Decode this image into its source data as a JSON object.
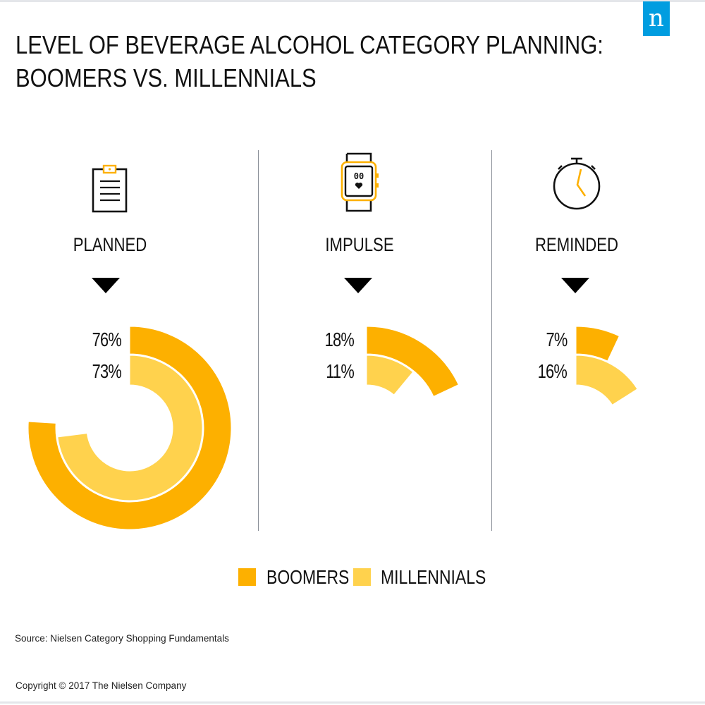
{
  "brand": {
    "logo_letter": "n",
    "color": "#009de0"
  },
  "title_lines": [
    "LEVEL OF BEVERAGE ALCOHOL CATEGORY PLANNING:",
    "BOOMERS VS. MILLENNIALS"
  ],
  "colors": {
    "boomers": "#fdb000",
    "millennials": "#ffd24d",
    "text": "#111111"
  },
  "icons": {
    "planned": "clipboard-icon",
    "impulse": "smartwatch-icon",
    "reminded": "stopwatch-icon"
  },
  "chart_data": {
    "type": "radial-bar",
    "title": "LEVEL OF BEVERAGE ALCOHOL CATEGORY PLANNING: BOOMERS VS. MILLENNIALS",
    "unit": "%",
    "categories": [
      "PLANNED",
      "IMPULSE",
      "REMINDED"
    ],
    "series": [
      {
        "name": "BOOMERS",
        "color": "#fdb000",
        "values": [
          76,
          18,
          7
        ],
        "labels": [
          "76%",
          "18%",
          "7%"
        ]
      },
      {
        "name": "MILLENNIALS",
        "color": "#ffd24d",
        "values": [
          73,
          11,
          16
        ],
        "labels": [
          "73%",
          "11%",
          "16%"
        ]
      }
    ],
    "legend": {
      "placement": "bottom-center",
      "entries": [
        "BOOMERS",
        "MILLENNIALS"
      ]
    }
  },
  "footer": {
    "source": "Source: Nielsen Category Shopping Fundamentals",
    "copyright": "Copyright © 2017 The Nielsen Company"
  }
}
